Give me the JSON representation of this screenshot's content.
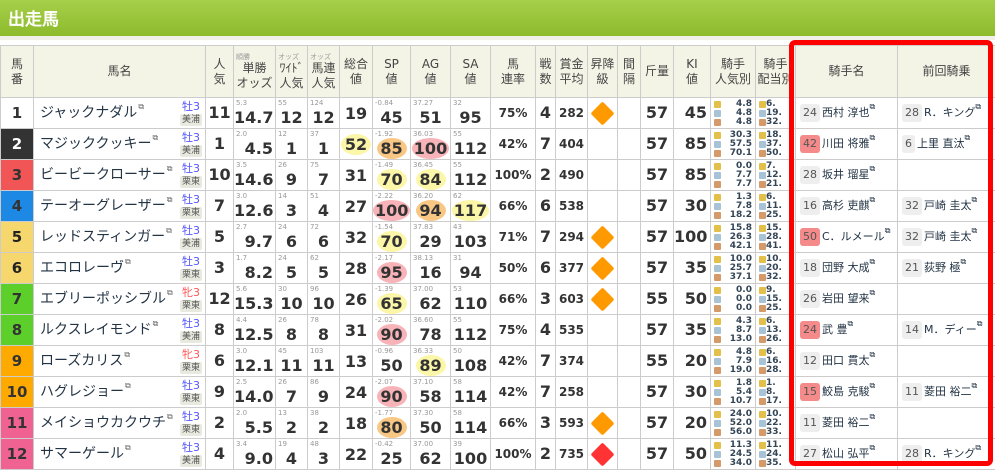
{
  "title": "出走馬",
  "headers": {
    "umaban": "馬\n番",
    "name": "馬名",
    "ninki": "人\n気",
    "tansho": "単勝\nオッズ",
    "tansho_sub": "順勝",
    "wide": "ﾜｲﾄﾞ\n人気",
    "wide_sub": "オッズ",
    "umaren": "馬連\n人気",
    "umaren_sub": "オッズ",
    "sogo": "総合\n値",
    "sp": "SP\n値",
    "ag": "AG\n値",
    "sa": "SA\n値",
    "soku": "馬\n連率",
    "sensu": "戦\n数",
    "shokin": "賞金\n平均",
    "shoko": "昇降\n級",
    "kankaku": "間\n隔",
    "kinryo": "斤量",
    "ki": "KI\n値",
    "jninki": "騎手\n人気別",
    "jhaito": "騎手\n配当別",
    "jockey": "騎手名",
    "prev": "前回騎乗"
  },
  "colors": {
    "accent": "#8dbb2c",
    "highlight_box": "#ff0000"
  },
  "rows": [
    {
      "no": "1",
      "waku": "#ffffff",
      "wc": "#333",
      "name": "ジャックナダル",
      "sex": "牡3",
      "f": false,
      "tr": "美浦",
      "ninki": "11",
      "odds": "14.7",
      "odds_s": "5.3",
      "wide": "12",
      "wide_s": "55",
      "ren": "12",
      "ren_s": "124",
      "sogo": "19",
      "sogo_c": "",
      "sp": "45",
      "sp_s": "-0.84",
      "sp_c": "",
      "ag": "51",
      "ag_s": "37.27",
      "ag_c": "",
      "sa": "95",
      "sa_s": "32",
      "sa_c": "",
      "rate": "75%",
      "sen": "4",
      "sho": "282",
      "ud": "up",
      "ki": "45",
      "kin": "57",
      "jp": [
        "4.8",
        "4.8",
        "4.8"
      ],
      "jh": [
        "6.",
        "19.",
        "32."
      ],
      "jno": "24",
      "jred": false,
      "jname": "西村 淳也",
      "pno": "28",
      "pname": "R．キング"
    },
    {
      "no": "2",
      "waku": "#333333",
      "wc": "#fff",
      "name": "マジッククッキー",
      "sex": "牡3",
      "f": false,
      "tr": "美浦",
      "ninki": "1",
      "odds": "4.5",
      "odds_s": "2.0",
      "wide": "1",
      "wide_s": "12",
      "ren": "1",
      "ren_s": "37",
      "sogo": "52",
      "sogo_c": "y",
      "sp": "85",
      "sp_s": "-1.92",
      "sp_c": "o",
      "ag": "100",
      "ag_s": "36.03",
      "ag_c": "p",
      "sa": "112",
      "sa_s": "55",
      "sa_c": "",
      "rate": "42%",
      "sen": "7",
      "sho": "404",
      "ud": "",
      "ki": "85",
      "kin": "57",
      "jp": [
        "30.3",
        "57.5",
        "70.1"
      ],
      "jh": [
        "18.",
        "37.",
        "50."
      ],
      "jno": "42",
      "jred": true,
      "jname": "川田 将雅",
      "pno": "6",
      "pname": "上里 直汰"
    },
    {
      "no": "3",
      "waku": "#f25555",
      "wc": "#333",
      "name": "ビービークローサー",
      "sex": "牡3",
      "f": false,
      "tr": "栗東",
      "ninki": "10",
      "odds": "14.6",
      "odds_s": "3.5",
      "wide": "9",
      "wide_s": "26",
      "ren": "7",
      "ren_s": "75",
      "sogo": "31",
      "sogo_c": "",
      "sp": "70",
      "sp_s": "-1.49",
      "sp_c": "y",
      "ag": "84",
      "ag_s": "36.45",
      "ag_c": "y",
      "sa": "112",
      "sa_s": "55",
      "sa_c": "",
      "rate": "100%",
      "sen": "2",
      "sho": "490",
      "ud": "",
      "ki": "85",
      "kin": "57",
      "jp": [
        "0.0",
        "7.7",
        "7.7"
      ],
      "jh": [
        "7.",
        "12.",
        "21."
      ],
      "jno": "28",
      "jred": false,
      "jname": "坂井 瑠星",
      "pno": "",
      "pname": ""
    },
    {
      "no": "4",
      "waku": "#1e88e5",
      "wc": "#333",
      "name": "テーオーグレーザー",
      "sex": "牡3",
      "f": false,
      "tr": "栗東",
      "ninki": "7",
      "odds": "12.6",
      "odds_s": "3.0",
      "wide": "3",
      "wide_s": "14",
      "ren": "4",
      "ren_s": "51",
      "sogo": "27",
      "sogo_c": "",
      "sp": "100",
      "sp_s": "-2.22",
      "sp_c": "p",
      "ag": "94",
      "ag_s": "36.20",
      "ag_c": "o",
      "sa": "117",
      "sa_s": "62",
      "sa_c": "y",
      "rate": "66%",
      "sen": "6",
      "sho": "538",
      "ud": "",
      "ki": "30",
      "kin": "57",
      "jp": [
        "1.3",
        "7.8",
        "18.2"
      ],
      "jh": [
        "6.",
        "11.",
        "25."
      ],
      "jno": "16",
      "jred": false,
      "jname": "高杉 吏麒",
      "pno": "32",
      "pname": "戸崎 圭太"
    },
    {
      "no": "5",
      "waku": "#f5d76e",
      "wc": "#222",
      "name": "レッドスティンガー",
      "sex": "牡3",
      "f": false,
      "tr": "美浦",
      "ninki": "5",
      "odds": "9.7",
      "odds_s": "2.7",
      "wide": "6",
      "wide_s": "24",
      "ren": "6",
      "ren_s": "72",
      "sogo": "32",
      "sogo_c": "",
      "sp": "70",
      "sp_s": "-1.54",
      "sp_c": "y",
      "ag": "29",
      "ag_s": "37.83",
      "ag_c": "",
      "sa": "103",
      "sa_s": "43",
      "sa_c": "",
      "rate": "71%",
      "sen": "7",
      "sho": "294",
      "ud": "up",
      "ki": "100",
      "kin": "57",
      "jp": [
        "15.8",
        "26.3",
        "42.1"
      ],
      "jh": [
        "15.",
        "28.",
        "41."
      ],
      "jno": "50",
      "jred": true,
      "jname": "C．ルメール",
      "pno": "32",
      "pname": "戸崎 圭太"
    },
    {
      "no": "6",
      "waku": "#f5d76e",
      "wc": "#222",
      "name": "エコロレーヴ",
      "sex": "牡3",
      "f": false,
      "tr": "栗東",
      "ninki": "3",
      "odds": "8.2",
      "odds_s": "1.7",
      "wide": "5",
      "wide_s": "24",
      "ren": "5",
      "ren_s": "62",
      "sogo": "28",
      "sogo_c": "",
      "sp": "95",
      "sp_s": "-2.17",
      "sp_c": "p",
      "ag": "16",
      "ag_s": "38.13",
      "ag_c": "",
      "sa": "94",
      "sa_s": "31",
      "sa_c": "",
      "rate": "50%",
      "sen": "6",
      "sho": "377",
      "ud": "up",
      "ki": "35",
      "kin": "57",
      "jp": [
        "10.0",
        "25.7",
        "37.1"
      ],
      "jh": [
        "10.",
        "20.",
        "32."
      ],
      "jno": "18",
      "jred": false,
      "jname": "団野 大成",
      "pno": "21",
      "pname": "荻野 極"
    },
    {
      "no": "7",
      "waku": "#5ccf2a",
      "wc": "#333",
      "name": "エブリーポッシブル",
      "sex": "牝3",
      "f": true,
      "tr": "栗東",
      "ninki": "12",
      "odds": "15.3",
      "odds_s": "5.6",
      "wide": "10",
      "wide_s": "30",
      "ren": "10",
      "ren_s": "96",
      "sogo": "26",
      "sogo_c": "",
      "sp": "65",
      "sp_s": "-1.39",
      "sp_c": "y",
      "ag": "62",
      "ag_s": "37.00",
      "ag_c": "",
      "sa": "110",
      "sa_s": "53",
      "sa_c": "",
      "rate": "66%",
      "sen": "3",
      "sho": "603",
      "ud": "up",
      "ki": "50",
      "kin": "55",
      "jp": [
        "0.0",
        "0.0",
        "0.0"
      ],
      "jh": [
        "9.",
        "15.",
        "25."
      ],
      "jno": "26",
      "jred": false,
      "jname": "岩田 望来",
      "pno": "",
      "pname": ""
    },
    {
      "no": "8",
      "waku": "#5ccf2a",
      "wc": "#333",
      "name": "ルクスレイモンド",
      "sex": "牡3",
      "f": false,
      "tr": "美浦",
      "ninki": "8",
      "odds": "12.5",
      "odds_s": "4.4",
      "wide": "8",
      "wide_s": "26",
      "ren": "8",
      "ren_s": "78",
      "sogo": "31",
      "sogo_c": "",
      "sp": "90",
      "sp_s": "-2.02",
      "sp_c": "p",
      "ag": "78",
      "ag_s": "36.60",
      "ag_c": "",
      "sa": "112",
      "sa_s": "55",
      "sa_c": "",
      "rate": "75%",
      "sen": "4",
      "sho": "535",
      "ud": "",
      "ki": "35",
      "kin": "57",
      "jp": [
        "4.3",
        "8.7",
        "13.0"
      ],
      "jh": [
        "6.",
        "13.",
        "26."
      ],
      "jno": "24",
      "jred": true,
      "jname": "武 豊",
      "pno": "14",
      "pname": "M．ディー"
    },
    {
      "no": "9",
      "waku": "#ffaa00",
      "wc": "#333",
      "name": "ローズカリス",
      "sex": "牝3",
      "f": true,
      "tr": "栗東",
      "ninki": "6",
      "odds": "12.1",
      "odds_s": "3.0",
      "wide": "11",
      "wide_s": "45",
      "ren": "11",
      "ren_s": "103",
      "sogo": "13",
      "sogo_c": "",
      "sp": "50",
      "sp_s": "-0.96",
      "sp_c": "",
      "ag": "89",
      "ag_s": "36.33",
      "ag_c": "y",
      "sa": "108",
      "sa_s": "50",
      "sa_c": "",
      "rate": "42%",
      "sen": "7",
      "sho": "374",
      "ud": "",
      "ki": "20",
      "kin": "55",
      "jp": [
        "4.8",
        "7.9",
        "19.0"
      ],
      "jh": [
        "6.",
        "16.",
        "28."
      ],
      "jno": "12",
      "jred": false,
      "jname": "田口 貫太",
      "pno": "",
      "pname": ""
    },
    {
      "no": "10",
      "waku": "#ffaa00",
      "wc": "#333",
      "name": "ハグレジョー",
      "sex": "牡3",
      "f": false,
      "tr": "栗東",
      "ninki": "9",
      "odds": "14.0",
      "odds_s": "2.5",
      "wide": "7",
      "wide_s": "26",
      "ren": "9",
      "ren_s": "86",
      "sogo": "24",
      "sogo_c": "",
      "sp": "90",
      "sp_s": "-2.07",
      "sp_c": "p",
      "ag": "58",
      "ag_s": "37.10",
      "ag_c": "",
      "sa": "114",
      "sa_s": "58",
      "sa_c": "",
      "rate": "42%",
      "sen": "7",
      "sho": "258",
      "ud": "",
      "ki": "30",
      "kin": "57",
      "jp": [
        "1.8",
        "5.4",
        "10.7"
      ],
      "jh": [
        "1.",
        "8.",
        "17."
      ],
      "jno": "15",
      "jred": true,
      "jname": "鮫島 克駿",
      "pno": "11",
      "pname": "菱田 裕二"
    },
    {
      "no": "11",
      "waku": "#f06292",
      "wc": "#333",
      "name": "メイショウカクウチ",
      "sex": "牡3",
      "f": false,
      "tr": "栗東",
      "ninki": "2",
      "odds": "5.5",
      "odds_s": "2.0",
      "wide": "2",
      "wide_s": "13",
      "ren": "2",
      "ren_s": "38",
      "sogo": "18",
      "sogo_c": "",
      "sp": "80",
      "sp_s": "-1.77",
      "sp_c": "o",
      "ag": "50",
      "ag_s": "37.30",
      "ag_c": "",
      "sa": "114",
      "sa_s": "58",
      "sa_c": "",
      "rate": "66%",
      "sen": "3",
      "sho": "593",
      "ud": "up",
      "ki": "20",
      "kin": "57",
      "jp": [
        "24.0",
        "52.0",
        "56.0"
      ],
      "jh": [
        "10.",
        "22.",
        "33."
      ],
      "jno": "11",
      "jred": false,
      "jname": "菱田 裕二",
      "pno": "",
      "pname": ""
    },
    {
      "no": "12",
      "waku": "#f06292",
      "wc": "#333",
      "name": "サマーゲール",
      "sex": "牡3",
      "f": false,
      "tr": "美浦",
      "ninki": "4",
      "odds": "9.0",
      "odds_s": "3.4",
      "wide": "4",
      "wide_s": "19",
      "ren": "3",
      "ren_s": "48",
      "sogo": "22",
      "sogo_c": "",
      "sp": "25",
      "sp_s": "-0.42",
      "sp_c": "",
      "ag": "62",
      "ag_s": "37.00",
      "ag_c": "",
      "sa": "100",
      "sa_s": "39",
      "sa_c": "",
      "rate": "100%",
      "sen": "2",
      "sho": "735",
      "ud": "down",
      "ki": "50",
      "kin": "57",
      "jp": [
        "11.3",
        "24.5",
        "34.0"
      ],
      "jh": [
        "11.",
        "24.",
        "35."
      ],
      "jno": "27",
      "jred": false,
      "jname": "松山 弘平",
      "pno": "28",
      "pname": "R．キング"
    }
  ]
}
